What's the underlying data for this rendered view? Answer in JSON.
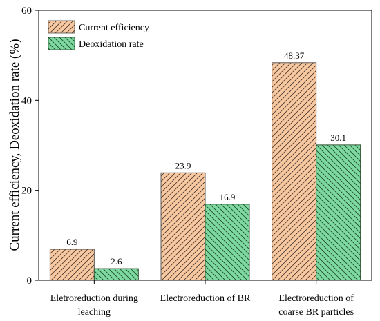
{
  "chart_data": {
    "type": "bar",
    "categories": [
      [
        "Eletroreduction during",
        "leaching"
      ],
      [
        "Electroreduction of BR"
      ],
      [
        "Electroreduction of",
        "coarse BR particles"
      ]
    ],
    "series": [
      {
        "name": "Current efficiency",
        "values": [
          6.9,
          23.9,
          48.37
        ],
        "labels": [
          "6.9",
          "23.9",
          "48.37"
        ],
        "color": "#f8c8a0",
        "hatch": "down-left",
        "stroke": "#4a4a4a"
      },
      {
        "name": "Deoxidation rate",
        "values": [
          2.6,
          16.9,
          30.1
        ],
        "labels": [
          "2.6",
          "16.9",
          "30.1"
        ],
        "color": "#7dd9a0",
        "hatch": "down-right",
        "stroke": "#2a4a2a"
      }
    ],
    "ylabel": "Current efficiency, Deoxidation rate (%)",
    "ylim": [
      0,
      60
    ],
    "yticks": [
      0,
      20,
      40,
      60
    ],
    "grid": false,
    "legend": "top-left"
  }
}
